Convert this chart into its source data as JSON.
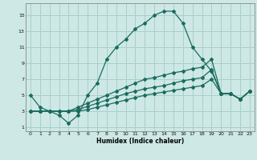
{
  "xlabel": "Humidex (Indice chaleur)",
  "xlim": [
    -0.5,
    23.5
  ],
  "ylim": [
    0.5,
    16.5
  ],
  "xticks": [
    0,
    1,
    2,
    3,
    4,
    5,
    6,
    7,
    8,
    9,
    10,
    11,
    12,
    13,
    14,
    15,
    16,
    17,
    18,
    19,
    20,
    21,
    22,
    23
  ],
  "yticks": [
    1,
    3,
    5,
    7,
    9,
    11,
    13,
    15
  ],
  "bg_color": "#cde8e5",
  "grid_color": "#aacfcc",
  "line_color": "#1a6b5e",
  "lines": [
    {
      "x": [
        0,
        1,
        2,
        3,
        4,
        5,
        6,
        7,
        8,
        9,
        10,
        11,
        12,
        13,
        14,
        15,
        16,
        17,
        18,
        19,
        20,
        21,
        22,
        23
      ],
      "y": [
        5,
        3.5,
        3,
        2.5,
        1.5,
        2.5,
        5.0,
        6.5,
        9.5,
        11.0,
        12.0,
        13.3,
        14.0,
        15.0,
        15.5,
        15.5,
        14.0,
        11.0,
        9.5,
        8.0,
        5.2,
        5.2,
        4.5,
        5.5
      ]
    },
    {
      "x": [
        0,
        1,
        2,
        3,
        4,
        5,
        6,
        7,
        8,
        9,
        10,
        11,
        12,
        13,
        14,
        15,
        16,
        17,
        18,
        19,
        20,
        21,
        22,
        23
      ],
      "y": [
        3.0,
        3.0,
        3.0,
        3.0,
        3.0,
        3.5,
        4.0,
        4.5,
        5.0,
        5.5,
        6.0,
        6.5,
        7.0,
        7.2,
        7.5,
        7.8,
        8.0,
        8.3,
        8.5,
        9.5,
        5.2,
        5.2,
        4.5,
        5.5
      ]
    },
    {
      "x": [
        0,
        1,
        2,
        3,
        4,
        5,
        6,
        7,
        8,
        9,
        10,
        11,
        12,
        13,
        14,
        15,
        16,
        17,
        18,
        19,
        20,
        21,
        22,
        23
      ],
      "y": [
        3.0,
        3.0,
        3.0,
        3.0,
        3.0,
        3.2,
        3.6,
        4.0,
        4.4,
        4.8,
        5.2,
        5.5,
        5.8,
        6.0,
        6.2,
        6.5,
        6.8,
        7.0,
        7.2,
        8.2,
        5.2,
        5.2,
        4.5,
        5.5
      ]
    },
    {
      "x": [
        0,
        1,
        2,
        3,
        4,
        5,
        6,
        7,
        8,
        9,
        10,
        11,
        12,
        13,
        14,
        15,
        16,
        17,
        18,
        19,
        20,
        21,
        22,
        23
      ],
      "y": [
        3.0,
        3.0,
        3.0,
        3.0,
        3.0,
        3.0,
        3.2,
        3.5,
        3.8,
        4.1,
        4.4,
        4.7,
        5.0,
        5.2,
        5.4,
        5.6,
        5.8,
        6.0,
        6.2,
        7.0,
        5.2,
        5.2,
        4.5,
        5.5
      ]
    }
  ]
}
